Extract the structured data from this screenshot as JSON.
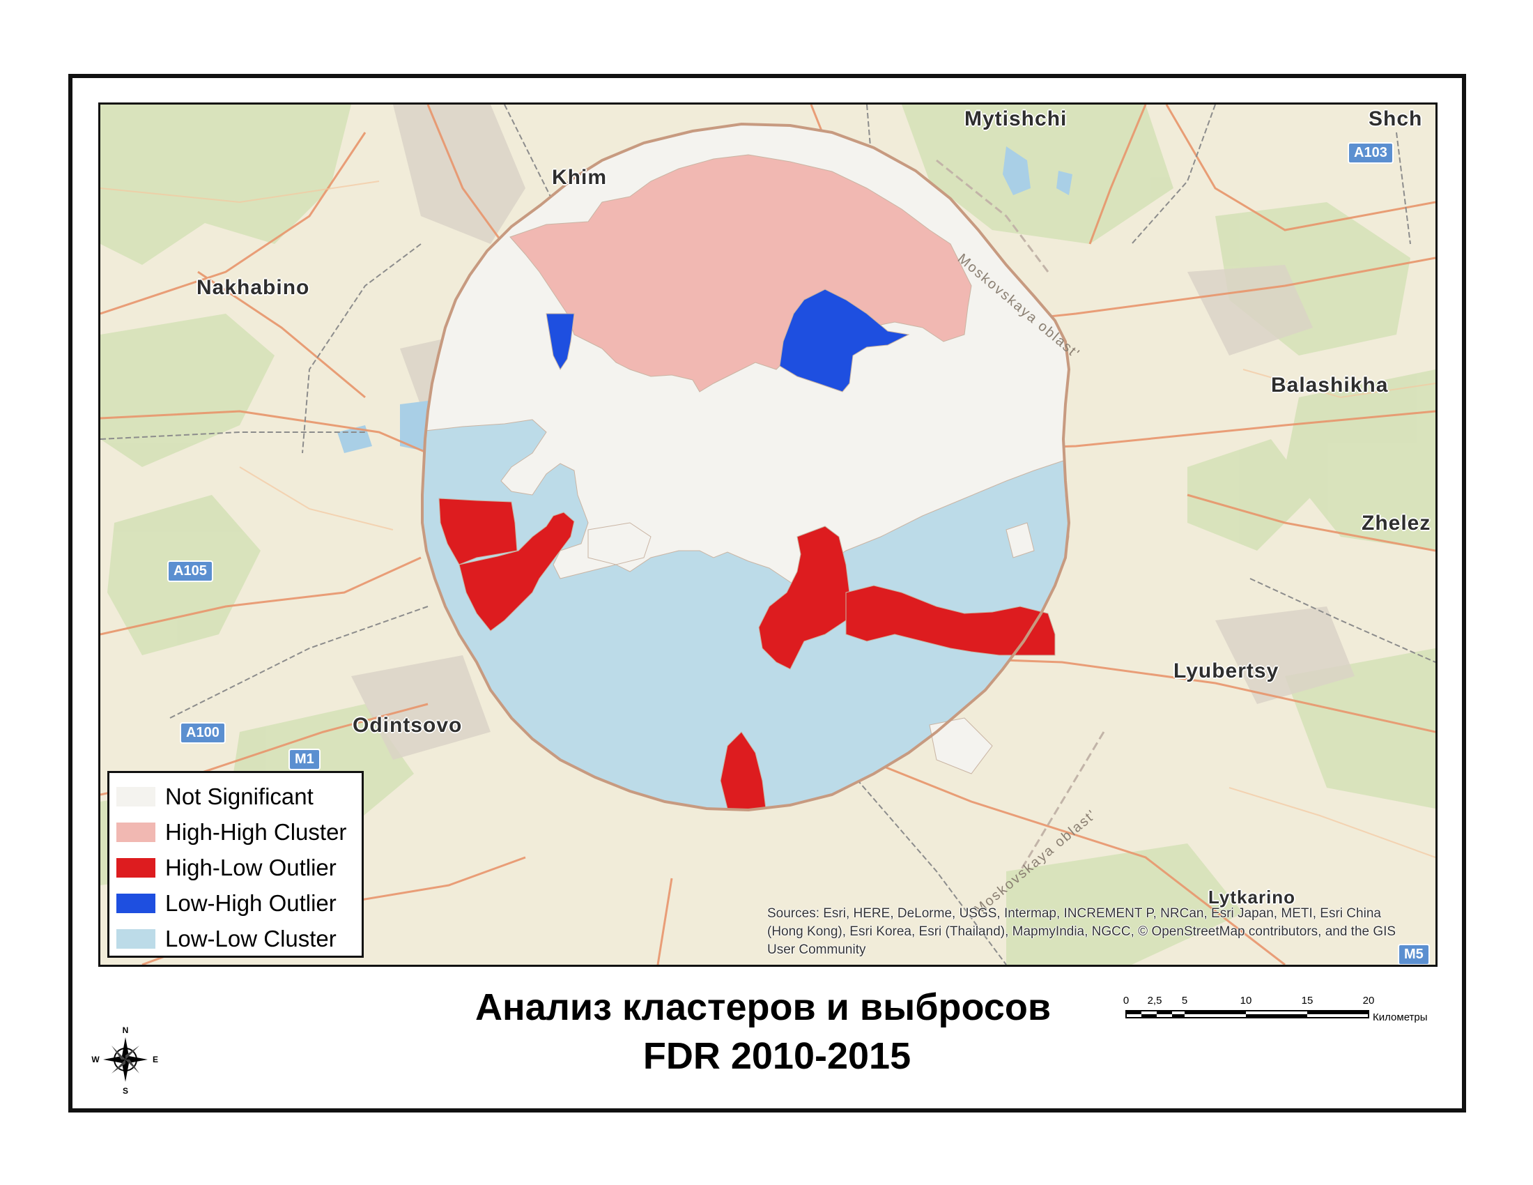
{
  "map": {
    "places": [
      {
        "name": "Mytishchi"
      },
      {
        "name": "Shch"
      },
      {
        "name": "Khim"
      },
      {
        "name": "Nakhabino"
      },
      {
        "name": "Balashikha"
      },
      {
        "name": "Zhelez"
      },
      {
        "name": "Lyubertsy"
      },
      {
        "name": "Odintsovo"
      },
      {
        "name": "Lytkarino"
      }
    ],
    "road_shields": [
      "A103",
      "A105",
      "A100",
      "M1",
      "M5"
    ],
    "oblast_labels": [
      "Moskovskaya oblast'",
      "Moskovskaya oblast'"
    ],
    "colors": {
      "not_significant": "#f4f3ef",
      "high_high": "#f1b8b2",
      "high_low": "#dd1c1f",
      "low_high": "#1e4fe0",
      "low_low": "#bcdbe8"
    }
  },
  "legend": {
    "items": [
      {
        "label": "Not Significant",
        "color": "#f4f3ef"
      },
      {
        "label": "High-High Cluster",
        "color": "#f1b8b2"
      },
      {
        "label": "High-Low Outlier",
        "color": "#dd1c1f"
      },
      {
        "label": "Low-High Outlier",
        "color": "#1e4fe0"
      },
      {
        "label": "Low-Low Cluster",
        "color": "#bcdbe8"
      }
    ]
  },
  "sources": "Sources: Esri, HERE, DeLorme, USGS, Intermap, INCREMENT P, NRCan, Esri Japan, METI, Esri China (Hong Kong), Esri Korea, Esri (Thailand), MapmyIndia, NGCC, © OpenStreetMap contributors, and the GIS User Community",
  "title": {
    "line1": "Анализ кластеров и выбросов",
    "line2": "FDR 2010-2015"
  },
  "scalebar": {
    "ticks": [
      "0",
      "2,5",
      "5",
      "10",
      "15",
      "20"
    ],
    "unit": "Километры"
  },
  "compass": {
    "n": "N",
    "s": "S",
    "e": "E",
    "w": "W"
  }
}
